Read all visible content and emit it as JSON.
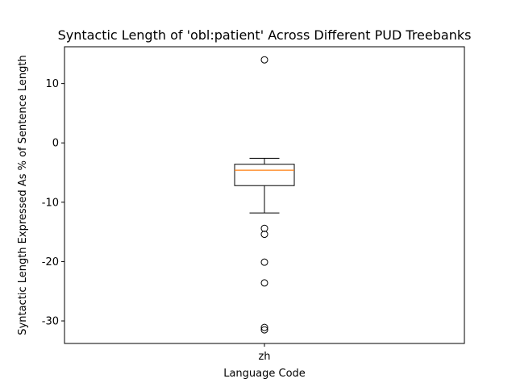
{
  "chart_data": {
    "type": "box",
    "title": "Syntactic Length of 'obl:patient' Across Different PUD Treebanks",
    "xlabel": "Language Code",
    "ylabel": "Syntactic Length Expressed As % of Sentence Length",
    "categories": [
      "zh"
    ],
    "ylim": [
      -33.8,
      16.2
    ],
    "yticks": [
      10,
      0,
      -10,
      -20,
      -30
    ],
    "grid": false,
    "boxes": [
      {
        "category": "zh",
        "whisker_high": -2.6,
        "q3": -3.6,
        "median": -4.6,
        "q1": -7.2,
        "whisker_low": -11.8,
        "outliers": [
          14.0,
          -14.4,
          -15.4,
          -20.1,
          -23.6,
          -31.1,
          -31.5
        ]
      }
    ],
    "colors": {
      "median": "#ff7f0e",
      "box": "#000000",
      "frame": "#000000"
    }
  }
}
